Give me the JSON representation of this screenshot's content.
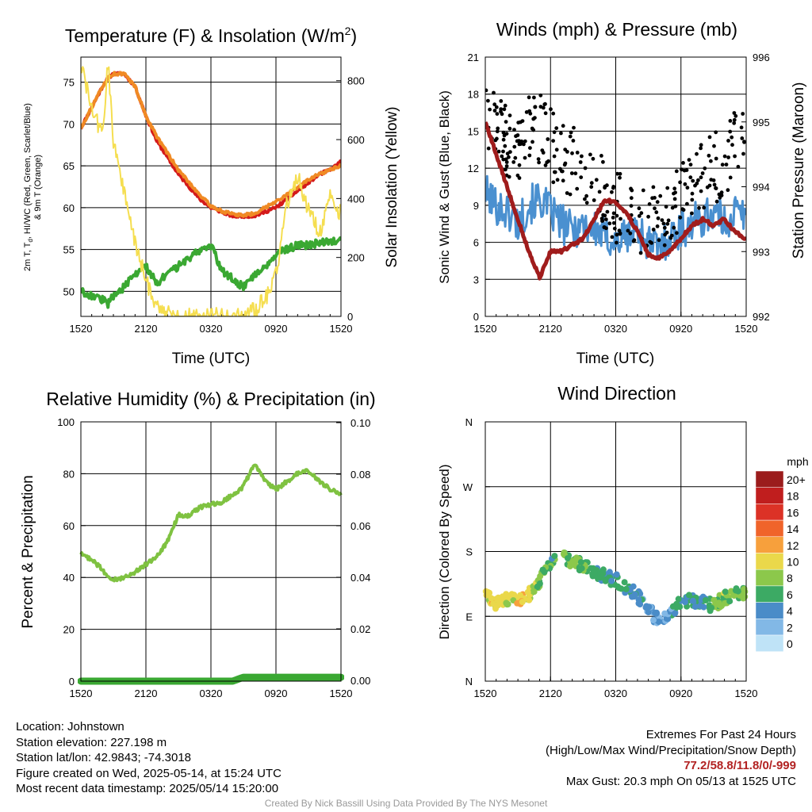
{
  "chart_data": [
    {
      "id": "temp",
      "type": "line",
      "title": "Temperature (F) & Insolation (W/m²)",
      "title_text": "Temperature (F) & Insolation (W/m",
      "title_sup": "2",
      "title_close": ")",
      "xlabel": "Time (UTC)",
      "ylabel_lines": [
        "2m T, T",
        ", HI/WC (Red, Green, Scarlet/Blue)",
        "& 9m T (Orange)"
      ],
      "ylabel_sub": "d",
      "y2label": "Solar Insolation (Yellow)",
      "x_ticks": [
        "1520",
        "2120",
        "0320",
        "0920",
        "1520"
      ],
      "ylim": [
        47,
        78
      ],
      "y_ticks": [
        50,
        55,
        60,
        65,
        70,
        75
      ],
      "y2lim": [
        0,
        880
      ],
      "y2_ticks": [
        0,
        200,
        400,
        600,
        800
      ],
      "grid": true,
      "x_hours": [
        0,
        1,
        2,
        2.5,
        3,
        4,
        5,
        6,
        7,
        8,
        9,
        10,
        11,
        12,
        13,
        14,
        15,
        16,
        17,
        18,
        19,
        20,
        21,
        22,
        23,
        24
      ],
      "series": [
        {
          "color": "#d41a1a",
          "axis": "left",
          "values": [
            69.5,
            72,
            74.5,
            75.5,
            76,
            76,
            74.5,
            71,
            68,
            66,
            64,
            62.5,
            61,
            60,
            59.5,
            59,
            59,
            59,
            59.5,
            60,
            61,
            62,
            63,
            64,
            64.5,
            65.5
          ]
        },
        {
          "color": "#f08a24",
          "axis": "left",
          "values": [
            69.5,
            72,
            74.5,
            75.5,
            76,
            76,
            74.5,
            71,
            68.5,
            66.5,
            64.5,
            63,
            61.5,
            60.2,
            59.6,
            59.2,
            59.1,
            59.3,
            60,
            60.8,
            61.5,
            62.5,
            63.3,
            64,
            64.5,
            65
          ]
        },
        {
          "color": "#3aa832",
          "axis": "left",
          "values": [
            50,
            49.5,
            49,
            48.5,
            49.5,
            50.5,
            52,
            53,
            51,
            52,
            53,
            54,
            55,
            55.5,
            52.5,
            51.5,
            50.5,
            52,
            53,
            54.5,
            55,
            55.5,
            55.5,
            55.8,
            56,
            56
          ]
        },
        {
          "color": "#f5de50",
          "axis": "right",
          "values": [
            860,
            700,
            620,
            860,
            600,
            420,
            250,
            120,
            40,
            10,
            0,
            0,
            0,
            0,
            0,
            0,
            0,
            20,
            60,
            140,
            380,
            480,
            360,
            280,
            400,
            350
          ]
        }
      ]
    },
    {
      "id": "wind",
      "type": "line",
      "title": "Winds (mph) & Pressure (mb)",
      "xlabel": "Time (UTC)",
      "ylabel": "Sonic Wind & Gust (Blue, Black)",
      "y2label": "Station Pressure (Maroon)",
      "x_ticks": [
        "1520",
        "2120",
        "0320",
        "0920",
        "1520"
      ],
      "ylim": [
        0,
        21
      ],
      "y_ticks": [
        0,
        3,
        6,
        9,
        12,
        15,
        18,
        21
      ],
      "y2lim": [
        992,
        996
      ],
      "y2_ticks": [
        992,
        993,
        994,
        995,
        996
      ],
      "grid": true,
      "x_hours": [
        0,
        1,
        2,
        3,
        4,
        5,
        6,
        7,
        8,
        9,
        10,
        11,
        12,
        13,
        14,
        15,
        16,
        17,
        18,
        19,
        20,
        21,
        22,
        23,
        24
      ],
      "series": [
        {
          "color": "#4a90d0",
          "axis": "left",
          "name": "Sonic Wind",
          "values": [
            10,
            9,
            8.5,
            7.5,
            9,
            9.5,
            8.5,
            7.5,
            7,
            7.5,
            7,
            6.5,
            6,
            6.5,
            7,
            6,
            5.5,
            6.5,
            7,
            7.5,
            8,
            8.5,
            7.5,
            8.5,
            8
          ]
        },
        {
          "color": "#000000",
          "axis": "left",
          "name": "Gust",
          "values": [
            17,
            15,
            14,
            13,
            15.5,
            15,
            14,
            13,
            12.5,
            12,
            11.5,
            10,
            9,
            8.5,
            8,
            7.5,
            8,
            9,
            10,
            11,
            11.5,
            12,
            12.5,
            14,
            14.5
          ]
        },
        {
          "color": "#a01c1c",
          "axis": "right",
          "name": "Pressure",
          "values": [
            995,
            994.5,
            994,
            993.5,
            993,
            992.6,
            993,
            993,
            993.1,
            993.2,
            993.5,
            993.8,
            993.75,
            993.6,
            993.3,
            992.95,
            992.9,
            993,
            993.2,
            993.4,
            993.5,
            993.4,
            993.5,
            993.3,
            993.2
          ]
        }
      ]
    },
    {
      "id": "rh",
      "type": "line",
      "title": "Relative Humidity (%) & Precipitation (in)",
      "ylabel": "Percent & Precipitation",
      "x_ticks": [
        "1520",
        "2120",
        "0320",
        "0920",
        "1520"
      ],
      "ylim": [
        0,
        100
      ],
      "y_ticks": [
        0,
        20,
        40,
        60,
        80,
        100
      ],
      "y2lim": [
        0,
        0.1
      ],
      "y2_ticks": [
        "0.00",
        "0.02",
        "0.04",
        "0.06",
        "0.08",
        "0.10"
      ],
      "grid": true,
      "x_hours": [
        0,
        1,
        2,
        2.5,
        3,
        4,
        5,
        6,
        7,
        8,
        9,
        10,
        11,
        12,
        13,
        14,
        15,
        16,
        17,
        18,
        19,
        20,
        21,
        22,
        23,
        24
      ],
      "series": [
        {
          "color": "#7fc241",
          "axis": "left",
          "name": "Relative Humidity",
          "values": [
            49,
            47,
            43,
            40,
            39,
            40,
            42,
            45,
            48,
            54,
            64,
            64,
            67,
            68,
            69,
            72,
            75,
            84,
            77,
            74,
            77,
            80,
            81,
            77,
            74,
            72
          ]
        },
        {
          "color": "#3aa832",
          "axis": "left",
          "name": "Precipitation",
          "values": [
            0,
            0,
            0,
            0,
            0,
            0,
            0,
            0,
            0,
            0,
            0,
            0,
            0,
            0,
            0,
            0,
            1.5,
            1.5,
            1.5,
            1.5,
            1.5,
            1.5,
            1.5,
            1.5,
            1.5,
            1.5
          ]
        }
      ]
    },
    {
      "id": "dir",
      "type": "scatter",
      "title": "Wind Direction",
      "ylabel": "Direction (Colored By Speed)",
      "x_ticks": [
        "1520",
        "2120",
        "0320",
        "0920",
        "1520"
      ],
      "y_ticks": [
        "N",
        "E",
        "S",
        "W",
        "N"
      ],
      "ylim": [
        0,
        360
      ],
      "grid": true,
      "x_hours": [
        0,
        1,
        2,
        3,
        4,
        5,
        6,
        7,
        8,
        9,
        10,
        11,
        12,
        13,
        14,
        15,
        16,
        17,
        18,
        19,
        20,
        21,
        22,
        23,
        24
      ],
      "directions": [
        118,
        108,
        115,
        112,
        120,
        140,
        165,
        170,
        168,
        160,
        152,
        145,
        140,
        130,
        118,
        100,
        82,
        95,
        108,
        112,
        110,
        105,
        115,
        120,
        125
      ],
      "speeds": [
        9,
        10,
        9,
        11,
        9,
        7,
        6,
        7,
        8,
        7,
        6,
        5,
        5,
        5,
        4,
        3,
        3,
        4,
        5,
        6,
        5,
        7,
        8,
        7,
        8
      ],
      "legend_title": "mph",
      "legend_labels": [
        "20+",
        "18",
        "16",
        "14",
        "12",
        "10",
        "8",
        "6",
        "4",
        "2",
        "0"
      ],
      "legend_colors": [
        "#9b1c1c",
        "#c01e1e",
        "#dc3226",
        "#f0642a",
        "#f7a03c",
        "#ead84a",
        "#8cc84b",
        "#3caa64",
        "#4a8cc8",
        "#82b8e6",
        "#bfe3f7"
      ]
    }
  ],
  "footer": {
    "location": "Location: Johnstown",
    "elevation": "Station elevation: 227.198 m",
    "latlon": "Station lat/lon: 42.9843; -74.3018",
    "created": "Figure created on Wed, 2025-05-14, at 15:24 UTC",
    "recent": "Most recent data timestamp: 2025/05/14 15:20:00",
    "extremes_title": "Extremes For Past 24 Hours",
    "extremes_desc": "(High/Low/Max Wind/Precipitation/Snow Depth)",
    "extremes_values": "77.2/58.8/11.8/0/-999",
    "max_gust": "Max Gust: 20.3 mph On 05/13 at 1525 UTC",
    "credit": "Created By Nick Bassill Using Data Provided By The NYS Mesonet"
  }
}
